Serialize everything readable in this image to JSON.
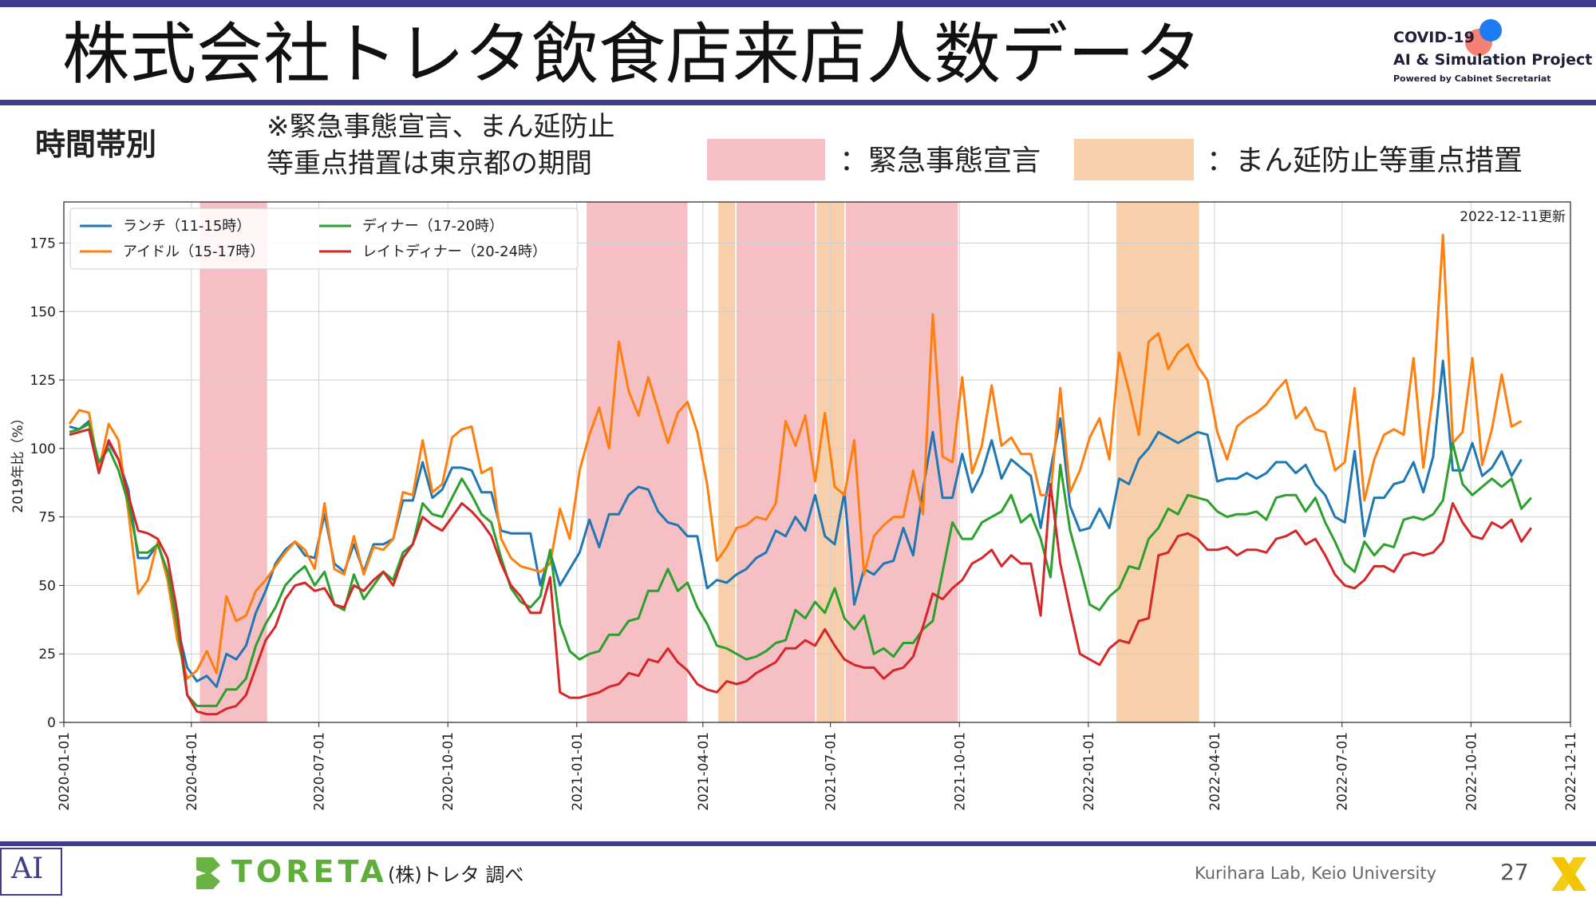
{
  "header": {
    "title": "株式会社トレタ飲食店来店人数データ",
    "logo_line1": "COVID-19",
    "logo_line2": "AI & Simulation Project",
    "logo_line3": "Powered by Cabinet Secretariat"
  },
  "subheader": {
    "subtitle": "時間帯別",
    "note_line1": "※緊急事態宣言、まん延防止",
    "note_line2": "等重点措置は東京都の期間",
    "legend_emergency": "：緊急事態宣言",
    "legend_semi": "：まん延防止等重点措置"
  },
  "colors": {
    "lunch": "#1f77b4",
    "idle": "#ff7f0e",
    "dinner": "#2ca02c",
    "late": "#d62728",
    "emergency_band": "#f6bfc3",
    "semi_band": "#f7cfaa",
    "brand_bar": "#3f3d8f"
  },
  "chart_data": {
    "type": "line",
    "updated": "2022-12-11更新",
    "ylabel": "2019年比（%）",
    "ylim": [
      0,
      190
    ],
    "yticks": [
      0,
      25,
      50,
      75,
      100,
      125,
      150,
      175
    ],
    "xlim": [
      "2020-01-01",
      "2022-12-11"
    ],
    "xticks": [
      "2020-01-01",
      "2020-04-01",
      "2020-07-01",
      "2020-10-01",
      "2021-01-01",
      "2021-04-01",
      "2021-07-01",
      "2021-10-01",
      "2022-01-01",
      "2022-04-01",
      "2022-07-01",
      "2022-10-01",
      "2022-12-11"
    ],
    "grid": true,
    "legend_position": "top-left",
    "emergency_periods": [
      [
        "2020-04-07",
        "2020-05-25"
      ],
      [
        "2021-01-08",
        "2021-03-21"
      ],
      [
        "2021-04-25",
        "2021-06-20"
      ],
      [
        "2021-07-12",
        "2021-09-30"
      ]
    ],
    "semi_periods": [
      [
        "2021-04-12",
        "2021-04-24"
      ],
      [
        "2021-06-21",
        "2021-07-11"
      ],
      [
        "2022-01-21",
        "2022-03-21"
      ]
    ],
    "start_date": "2020-01-05",
    "step_days": 7,
    "series": [
      {
        "name": "ランチ（11-15時）",
        "color": "#1f77b4",
        "values": [
          108,
          107,
          110,
          93,
          102,
          96,
          85,
          60,
          60,
          65,
          55,
          35,
          20,
          15,
          17,
          13,
          25,
          23,
          28,
          40,
          48,
          58,
          63,
          66,
          61,
          60,
          76,
          58,
          55,
          65,
          55,
          65,
          65,
          67,
          81,
          81,
          95,
          82,
          85,
          93,
          93,
          92,
          84,
          84,
          70,
          69,
          69,
          69,
          50,
          62,
          50,
          56,
          62,
          74,
          64,
          76,
          76,
          83,
          86,
          85,
          77,
          73,
          72,
          68,
          68,
          49,
          52,
          51,
          54,
          56,
          60,
          62,
          70,
          68,
          75,
          70,
          83,
          68,
          65,
          84,
          43,
          56,
          54,
          58,
          59,
          71,
          61,
          85,
          106,
          82,
          82,
          98,
          84,
          91,
          103,
          89,
          96,
          93,
          90,
          71,
          92,
          111,
          79,
          70,
          71,
          78,
          71,
          89,
          87,
          96,
          100,
          106,
          104,
          102,
          104,
          106,
          105,
          88,
          89,
          89,
          91,
          89,
          91,
          95,
          95,
          91,
          94,
          87,
          83,
          75,
          73,
          99,
          68,
          82,
          82,
          87,
          88,
          95,
          84,
          97,
          132,
          92,
          92,
          102,
          90,
          93,
          99,
          90,
          96
        ]
      },
      {
        "name": "アイドル（15-17時）",
        "color": "#ff7f0e",
        "values": [
          109,
          114,
          113,
          92,
          109,
          103,
          77,
          47,
          52,
          66,
          52,
          30,
          16,
          19,
          26,
          18,
          46,
          37,
          39,
          48,
          52,
          57,
          62,
          66,
          63,
          56,
          80,
          56,
          54,
          68,
          54,
          64,
          63,
          67,
          84,
          83,
          103,
          84,
          87,
          104,
          107,
          108,
          91,
          93,
          67,
          60,
          57,
          56,
          55,
          58,
          78,
          67,
          92,
          105,
          115,
          100,
          139,
          121,
          112,
          126,
          114,
          102,
          113,
          117,
          106,
          87,
          59,
          64,
          71,
          72,
          75,
          74,
          80,
          110,
          101,
          112,
          88,
          113,
          86,
          83,
          103,
          54,
          68,
          72,
          75,
          75,
          92,
          76,
          149,
          97,
          95,
          126,
          91,
          101,
          123,
          101,
          104,
          98,
          98,
          83,
          83,
          122,
          84,
          92,
          104,
          111,
          96,
          135,
          121,
          105,
          139,
          142,
          129,
          135,
          138,
          130,
          125,
          106,
          96,
          108,
          111,
          113,
          116,
          121,
          125,
          111,
          115,
          107,
          106,
          92,
          95,
          122,
          81,
          96,
          105,
          107,
          105,
          133,
          93,
          120,
          178,
          102,
          106,
          133,
          94,
          107,
          127,
          108,
          110
        ]
      },
      {
        "name": "ディナー（17-20時）",
        "color": "#2ca02c",
        "values": [
          106,
          107,
          109,
          95,
          100,
          92,
          80,
          62,
          62,
          65,
          55,
          35,
          10,
          6,
          6,
          6,
          12,
          12,
          16,
          28,
          36,
          42,
          50,
          54,
          57,
          50,
          55,
          43,
          41,
          54,
          45,
          50,
          55,
          52,
          62,
          65,
          80,
          76,
          75,
          82,
          89,
          83,
          76,
          73,
          60,
          49,
          44,
          42,
          46,
          63,
          36,
          26,
          23,
          25,
          26,
          32,
          32,
          37,
          38,
          48,
          48,
          56,
          48,
          51,
          42,
          36,
          28,
          27,
          25,
          23,
          24,
          26,
          29,
          30,
          41,
          38,
          44,
          40,
          49,
          38,
          34,
          39,
          25,
          27,
          24,
          29,
          29,
          34,
          37,
          55,
          73,
          67,
          67,
          73,
          75,
          77,
          83,
          73,
          76,
          67,
          53,
          94,
          70,
          57,
          43,
          41,
          46,
          49,
          57,
          56,
          67,
          71,
          78,
          76,
          83,
          82,
          81,
          77,
          75,
          76,
          76,
          77,
          74,
          82,
          83,
          83,
          77,
          82,
          73,
          66,
          58,
          55,
          66,
          61,
          65,
          64,
          74,
          75,
          74,
          76,
          81,
          102,
          87,
          83,
          86,
          89,
          86,
          89,
          78,
          82
        ]
      },
      {
        "name": "レイトディナー（20-24時）",
        "color": "#d62728",
        "values": [
          105,
          106,
          107,
          91,
          103,
          96,
          83,
          70,
          69,
          67,
          60,
          40,
          10,
          4,
          3,
          3,
          5,
          6,
          10,
          20,
          30,
          35,
          45,
          50,
          51,
          48,
          49,
          43,
          42,
          50,
          48,
          52,
          55,
          50,
          60,
          65,
          75,
          72,
          70,
          75,
          80,
          77,
          73,
          68,
          58,
          50,
          46,
          40,
          40,
          53,
          11,
          9,
          9,
          10,
          11,
          13,
          14,
          18,
          17,
          23,
          22,
          27,
          22,
          19,
          14,
          12,
          11,
          15,
          14,
          15,
          18,
          20,
          22,
          27,
          27,
          30,
          28,
          34,
          28,
          23,
          21,
          20,
          20,
          16,
          19,
          20,
          24,
          35,
          47,
          45,
          49,
          52,
          58,
          60,
          63,
          57,
          61,
          58,
          58,
          39,
          87,
          58,
          41,
          25,
          23,
          21,
          27,
          30,
          29,
          37,
          38,
          61,
          62,
          68,
          69,
          67,
          63,
          63,
          64,
          61,
          63,
          63,
          62,
          67,
          68,
          70,
          65,
          67,
          61,
          54,
          50,
          49,
          52,
          57,
          57,
          55,
          61,
          62,
          61,
          62,
          66,
          80,
          73,
          68,
          67,
          73,
          71,
          74,
          66,
          71
        ]
      }
    ]
  },
  "footer": {
    "logo_left": "AI",
    "toreta": "TORETA",
    "source": "(株)トレタ 調べ",
    "lab": "Kurihara Lab, Keio University",
    "page": "27"
  }
}
